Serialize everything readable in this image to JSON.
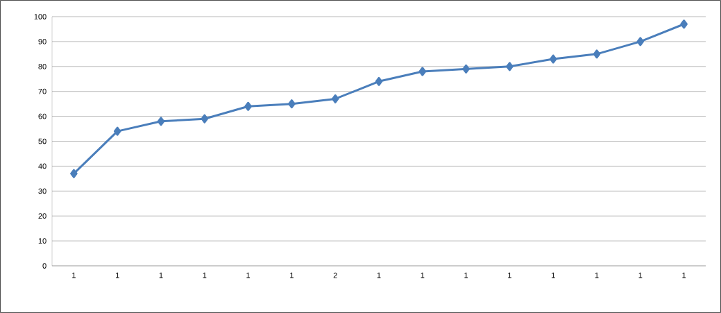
{
  "chart_data": {
    "type": "line",
    "categories": [
      "1",
      "1",
      "1",
      "1",
      "1",
      "1",
      "2",
      "1",
      "1",
      "1",
      "1",
      "1",
      "1",
      "1",
      "1"
    ],
    "values": [
      37,
      54,
      58,
      59,
      64,
      65,
      67,
      74,
      78,
      79,
      80,
      83,
      85,
      90,
      97
    ],
    "color": "#4a7ebb",
    "ylim": [
      0,
      100
    ],
    "yticks": [
      0,
      10,
      20,
      30,
      40,
      50,
      60,
      70,
      80,
      90,
      100
    ],
    "grid": "y",
    "marker": "diamond",
    "line_style": "solid"
  }
}
